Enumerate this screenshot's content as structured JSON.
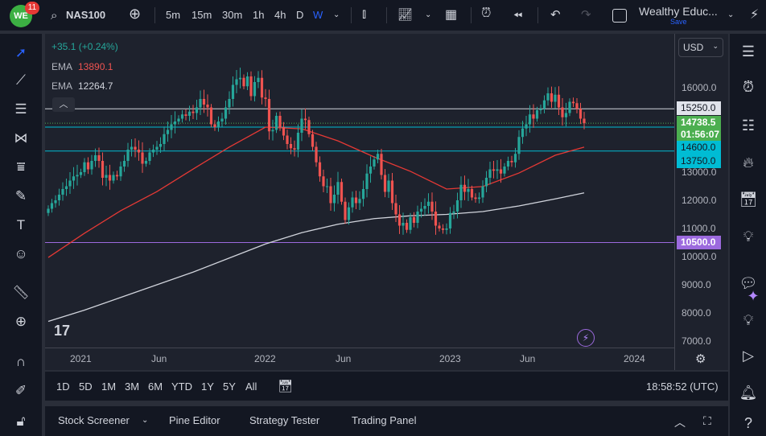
{
  "topbar": {
    "logo": "WE",
    "notifications": "11",
    "symbol": "NAS100",
    "timeframes": [
      "5m",
      "15m",
      "30m",
      "1h",
      "4h",
      "D",
      "W"
    ],
    "active_timeframe": "W",
    "layout_name": "Wealthy Educ...",
    "save_label": "Save"
  },
  "legend": {
    "change": "+35.1 (+0.24%)",
    "ema1_label": "EMA",
    "ema1_value": "13890.1",
    "ema2_label": "EMA",
    "ema2_value": "12264.7"
  },
  "currency": "USD",
  "price_axis": {
    "ticks": [
      "16000.0",
      "13000.0",
      "12000.0",
      "11000.0",
      "10000.0",
      "9000.0",
      "8000.0",
      "7000.0"
    ],
    "labels": {
      "l15250": "15250.0",
      "current": "14738.5",
      "countdown": "01:56:07",
      "l14600": "14600.0",
      "l13750": "13750.0",
      "l10500": "10500.0"
    }
  },
  "date_axis": [
    "2021",
    "Jun",
    "2022",
    "Jun",
    "2023",
    "Jun",
    "2024"
  ],
  "bottombar": {
    "ranges": [
      "1D",
      "5D",
      "1M",
      "3M",
      "6M",
      "YTD",
      "1Y",
      "5Y",
      "All"
    ],
    "clock": "18:58:52 (UTC)"
  },
  "panel": {
    "tabs": [
      "Stock Screener",
      "Pine Editor",
      "Strategy Tester",
      "Trading Panel"
    ]
  },
  "colors": {
    "up": "#26a69a",
    "down": "#ef5350",
    "ema50": "#e53935",
    "ema200": "#d1d4dc",
    "cyan": "#00bcd4",
    "purple": "#9c6ade",
    "current": "#4caf50"
  },
  "chart_data": {
    "type": "candlestick",
    "interval": "1W",
    "symbol": "NAS100",
    "ylim": [
      7000,
      16500
    ],
    "horizontal_lines": [
      {
        "price": 15250,
        "color": "#d1d4dc"
      },
      {
        "price": 14600,
        "color": "#00bcd4"
      },
      {
        "price": 13750,
        "color": "#00bcd4"
      },
      {
        "price": 10500,
        "color": "#9c6ade"
      }
    ],
    "weekly_close": [
      11700,
      11900,
      12000,
      12200,
      12400,
      12500,
      12700,
      12850,
      12900,
      13000,
      13350,
      13100,
      13400,
      13600,
      13400,
      12800,
      12900,
      12700,
      12900,
      12850,
      13200,
      13400,
      13800,
      13900,
      13800,
      13700,
      13300,
      13400,
      13700,
      13800,
      13900,
      14000,
      14350,
      14500,
      14700,
      14800,
      14900,
      15050,
      15000,
      15150,
      15100,
      15300,
      15600,
      15400,
      15300,
      14700,
      14600,
      14800,
      14900,
      15300,
      15600,
      16100,
      16300,
      16350,
      16050,
      16400,
      15700,
      16200,
      16350,
      15650,
      15600,
      14450,
      14500,
      15000,
      14600,
      14300,
      14000,
      13850,
      13800,
      14400,
      14900,
      14850,
      14350,
      13900,
      13350,
      12850,
      12500,
      12500,
      11900,
      12200,
      12650,
      11950,
      11300,
      11750,
      12100,
      11900,
      12050,
      12400,
      12950,
      13200,
      13450,
      13650,
      12900,
      12300,
      12700,
      11900,
      11500,
      11100,
      11200,
      10950,
      11400,
      11200,
      11600,
      11700,
      11800,
      11950,
      11600,
      11100,
      11000,
      10950,
      11000,
      11550,
      11600,
      12000,
      12550,
      12300,
      12400,
      12100,
      12050,
      12100,
      12500,
      12800,
      13100,
      13050,
      13100,
      12950,
      13200,
      13400,
      13350,
      13650,
      14250,
      14550,
      14700,
      15050,
      14900,
      15200,
      15250,
      15550,
      15800,
      15500,
      15750,
      15300,
      14950,
      15100,
      15500,
      15450,
      15250,
      14900,
      14738.5
    ],
    "ema50_every10w": [
      9970,
      10830,
      11630,
      12310,
      13110,
      13890,
      14600,
      14540,
      14110,
      13540,
      13030,
      12400,
      12490,
      12970,
      13600,
      13890.1
    ],
    "ema200_every10w": [
      7700,
      8100,
      8550,
      9000,
      9450,
      9950,
      10450,
      10850,
      11150,
      11350,
      11450,
      11500,
      11600,
      11800,
      12050,
      12264.7
    ]
  }
}
